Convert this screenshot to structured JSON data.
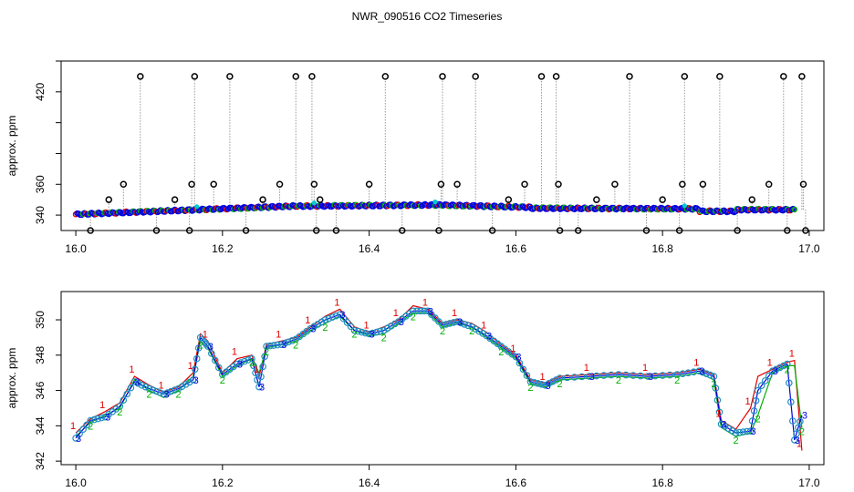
{
  "figure": {
    "title": "NWR_090516  CO2 Timeseries"
  },
  "colors": {
    "red": "#e00000",
    "green": "#00b000",
    "blue": "#0000e0",
    "cyan": "#00cccc",
    "black": "#000000",
    "gray": "#999999"
  },
  "chart_data": [
    {
      "type": "scatter",
      "title": "",
      "xlabel": "",
      "ylabel": "approx. ppm",
      "xlim": [
        15.98,
        17.02
      ],
      "ylim": [
        330,
        440
      ],
      "xticks": [
        "16.0",
        "16.2",
        "16.4",
        "16.6",
        "16.8",
        "17.0"
      ],
      "yticks": [
        "340",
        "360",
        "420"
      ],
      "ytick_minor": [
        380,
        400,
        440
      ],
      "description_series": [
        {
          "name": "",
          "color": "blue",
          "style": "dense points"
        },
        {
          "name": "",
          "color": "black",
          "style": "outliers"
        }
      ],
      "outliers_x": [
        16.02,
        16.045,
        16.065,
        16.088,
        16.11,
        16.135,
        16.155,
        16.158,
        16.162,
        16.188,
        16.21,
        16.232,
        16.255,
        16.278,
        16.3,
        16.322,
        16.325,
        16.328,
        16.333,
        16.355,
        16.4,
        16.422,
        16.445,
        16.495,
        16.498,
        16.5,
        16.52,
        16.545,
        16.568,
        16.59,
        16.612,
        16.635,
        16.655,
        16.658,
        16.66,
        16.685,
        16.71,
        16.735,
        16.755,
        16.778,
        16.8,
        16.823,
        16.827,
        16.83,
        16.855,
        16.878,
        16.902,
        16.922,
        16.945,
        16.965,
        16.97,
        16.99,
        16.992,
        16.995
      ],
      "outliers_y": [
        330,
        350,
        360,
        430,
        330,
        350,
        330,
        360,
        430,
        360,
        430,
        330,
        350,
        360,
        430,
        430,
        360,
        330,
        350,
        330,
        360,
        430,
        330,
        330,
        360,
        430,
        360,
        430,
        330,
        350,
        360,
        430,
        430,
        360,
        330,
        330,
        350,
        360,
        430,
        330,
        350,
        330,
        360,
        430,
        360,
        430,
        330,
        350,
        360,
        430,
        330,
        430,
        360,
        330
      ]
    },
    {
      "type": "line",
      "title": "",
      "xlabel": "",
      "ylabel": "approx. ppm",
      "xlim": [
        15.98,
        17.02
      ],
      "ylim": [
        341.8,
        351.6
      ],
      "xticks": [
        "16.0",
        "16.2",
        "16.4",
        "16.6",
        "16.8",
        "17.0"
      ],
      "yticks": [
        "342",
        "344",
        "346",
        "348",
        "350"
      ],
      "x": [
        16.0,
        16.02,
        16.04,
        16.06,
        16.08,
        16.1,
        16.12,
        16.14,
        16.16,
        16.17,
        16.18,
        16.2,
        16.22,
        16.24,
        16.25,
        16.26,
        16.28,
        16.3,
        16.32,
        16.34,
        16.36,
        16.38,
        16.4,
        16.42,
        16.44,
        16.46,
        16.48,
        16.5,
        16.52,
        16.54,
        16.56,
        16.58,
        16.6,
        16.62,
        16.64,
        16.66,
        16.7,
        16.74,
        16.78,
        16.82,
        16.85,
        16.87,
        16.88,
        16.9,
        16.92,
        16.93,
        16.95,
        16.97,
        16.98,
        16.99
      ],
      "series": [
        {
          "name": "1",
          "color": "red",
          "values": [
            343.6,
            344.4,
            344.8,
            345.3,
            346.8,
            346.3,
            345.9,
            346.2,
            347.0,
            349.2,
            348.8,
            347.0,
            347.8,
            348.0,
            346.8,
            348.6,
            348.8,
            349.0,
            349.6,
            350.2,
            350.6,
            349.6,
            349.3,
            349.6,
            350.0,
            350.8,
            350.6,
            349.8,
            350.0,
            349.8,
            349.3,
            348.6,
            348.0,
            346.6,
            346.4,
            346.8,
            346.9,
            347.0,
            346.9,
            347.0,
            347.2,
            346.9,
            344.3,
            343.8,
            345.0,
            346.8,
            347.2,
            347.6,
            347.7,
            342.6
          ]
        },
        {
          "name": "2",
          "color": "green",
          "values": [
            343.4,
            344.2,
            344.6,
            345.0,
            346.6,
            346.0,
            345.6,
            346.0,
            346.8,
            348.8,
            348.4,
            346.8,
            347.4,
            347.8,
            347.0,
            348.4,
            348.6,
            348.8,
            349.4,
            349.8,
            350.2,
            349.4,
            349.1,
            349.2,
            349.8,
            350.4,
            350.4,
            349.6,
            349.8,
            349.6,
            349.0,
            348.4,
            347.8,
            346.4,
            346.2,
            346.6,
            346.7,
            346.8,
            346.7,
            346.8,
            347.0,
            346.6,
            343.9,
            343.4,
            343.6,
            344.6,
            347.0,
            347.4,
            347.4,
            343.9
          ]
        },
        {
          "name": "3",
          "color": "blue",
          "values": [
            343.3,
            344.3,
            344.5,
            345.1,
            346.5,
            346.1,
            345.8,
            346.1,
            346.6,
            349.0,
            348.5,
            346.9,
            347.5,
            347.8,
            346.2,
            348.5,
            348.6,
            348.9,
            349.5,
            350.0,
            350.3,
            349.4,
            349.2,
            349.4,
            349.9,
            350.5,
            350.5,
            349.7,
            349.9,
            349.6,
            349.1,
            348.5,
            347.9,
            346.5,
            346.3,
            346.7,
            346.8,
            346.9,
            346.8,
            346.9,
            347.1,
            346.8,
            344.1,
            343.6,
            343.7,
            346.0,
            347.1,
            347.5,
            343.2,
            344.6
          ]
        }
      ]
    }
  ]
}
